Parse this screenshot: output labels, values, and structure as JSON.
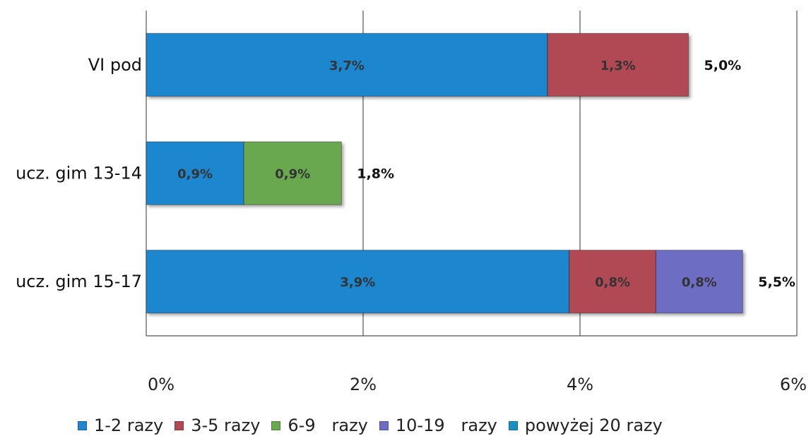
{
  "chart_data": {
    "type": "bar",
    "orientation": "horizontal",
    "stacked": true,
    "categories": [
      "VI pod",
      "ucz. gim 13-14",
      "ucz. gim 15-17"
    ],
    "series": [
      {
        "name": "1-2 razy",
        "color": "#1f86cf",
        "values": [
          3.7,
          0.9,
          3.9
        ],
        "labels": [
          "3,7%",
          "0,9%",
          "3,9%"
        ]
      },
      {
        "name": "3-5 razy",
        "color": "#b04a52",
        "values": [
          1.3,
          0,
          0.8
        ],
        "labels": [
          "1,3%",
          "",
          "0,8%"
        ]
      },
      {
        "name": "6-9   razy",
        "color": "#6aa84f",
        "values": [
          0,
          0.9,
          0
        ],
        "labels": [
          "",
          "0,9%",
          ""
        ]
      },
      {
        "name": "10-19   razy",
        "color": "#6d6dc4",
        "values": [
          0,
          0,
          0.8
        ],
        "labels": [
          "",
          "",
          "0,8%"
        ]
      },
      {
        "name": "powyżej 20 razy",
        "color": "#1b8fc4",
        "values": [
          0,
          0,
          0
        ],
        "labels": [
          "",
          "",
          ""
        ]
      }
    ],
    "totals": [
      "5,0%",
      "1,8%",
      "5,5%"
    ],
    "xticks": [
      "0%",
      "2%",
      "4%",
      "6%"
    ],
    "xlim": [
      0,
      6
    ],
    "grid": true,
    "legend_position": "bottom"
  }
}
